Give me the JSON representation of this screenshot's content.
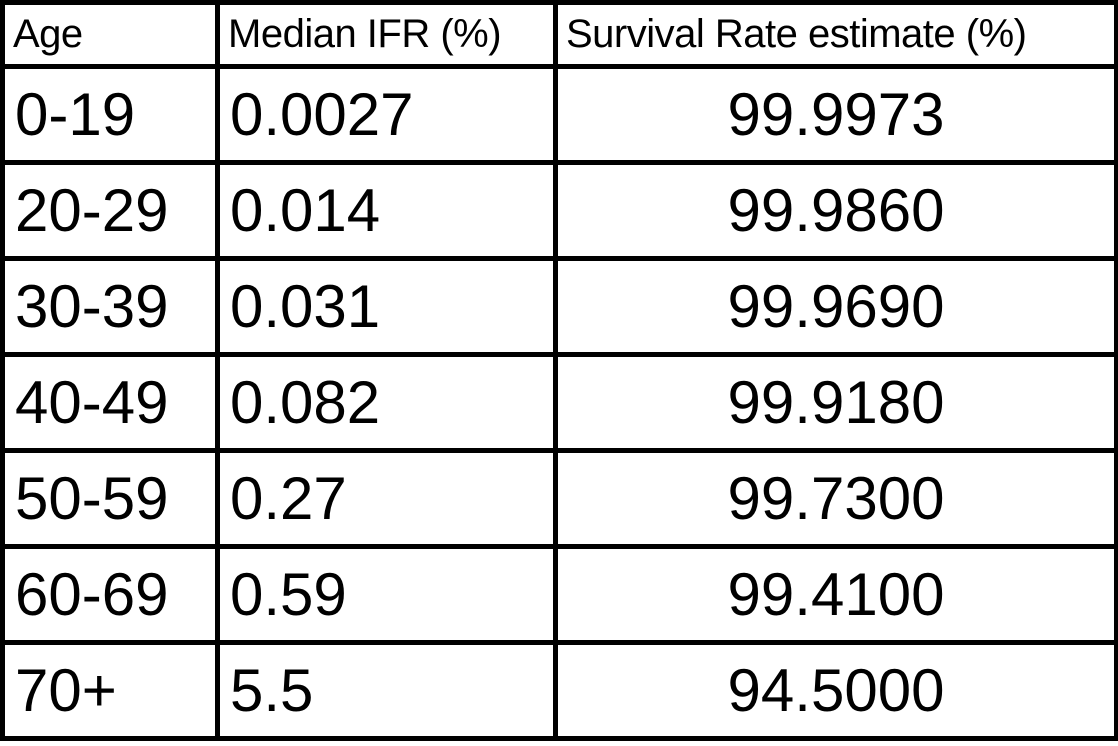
{
  "chart_data": {
    "type": "table",
    "title": "",
    "columns": [
      "Age",
      "Median IFR (%)",
      "Survival Rate estimate (%)"
    ],
    "rows": [
      [
        "0-19",
        "0.0027",
        "99.9973"
      ],
      [
        "20-29",
        "0.014",
        "99.9860"
      ],
      [
        "30-39",
        "0.031",
        "99.9690"
      ],
      [
        "40-49",
        "0.082",
        "99.9180"
      ],
      [
        "50-59",
        "0.27",
        "99.7300"
      ],
      [
        "60-69",
        "0.59",
        "99.4100"
      ],
      [
        "70+",
        "5.5",
        "94.5000"
      ]
    ],
    "layout": {
      "grid": "all-borders",
      "col1_align": "left",
      "col2_align": "left",
      "col3_align": "center"
    },
    "colors": {
      "border": "#000000",
      "text": "#000000",
      "background": "#ffffff"
    }
  }
}
